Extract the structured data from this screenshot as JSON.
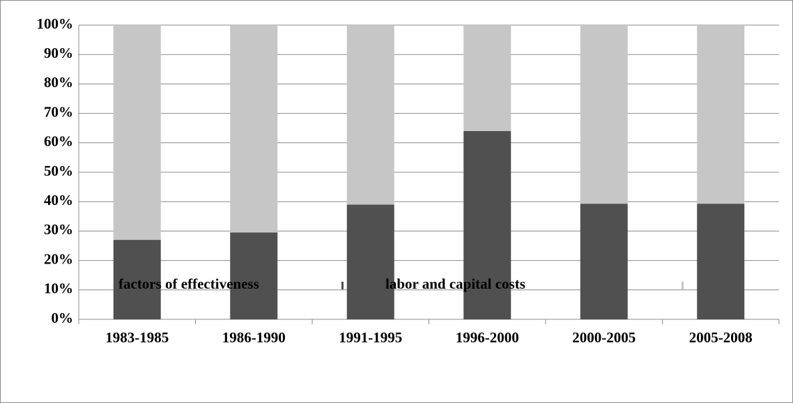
{
  "chart_data": {
    "type": "stacked_bar_100",
    "categories": [
      "1983-1985",
      "1986-1990",
      "1991-1995",
      "1996-2000",
      "2000-2005",
      "2005-2008"
    ],
    "series": [
      {
        "name": "factors of effectiveness",
        "color": "#505050",
        "values": [
          27,
          29.5,
          39,
          64,
          39.3,
          39.3
        ]
      },
      {
        "name": "labor and capital costs",
        "color": "#c6c6c6",
        "values": [
          73,
          70.5,
          61,
          36,
          60.7,
          60.7
        ]
      }
    ],
    "ylim": [
      0,
      100
    ],
    "yticks": [
      {
        "value": 0,
        "label": "0%"
      },
      {
        "value": 10,
        "label": "10%"
      },
      {
        "value": 20,
        "label": "20%"
      },
      {
        "value": 30,
        "label": "30%"
      },
      {
        "value": 40,
        "label": "40%"
      },
      {
        "value": 50,
        "label": "50%"
      },
      {
        "value": 60,
        "label": "60%"
      },
      {
        "value": 70,
        "label": "70%"
      },
      {
        "value": 80,
        "label": "80%"
      },
      {
        "value": 90,
        "label": "90%"
      },
      {
        "value": 100,
        "label": "100%"
      }
    ],
    "grid": true,
    "legend": "bottom"
  }
}
